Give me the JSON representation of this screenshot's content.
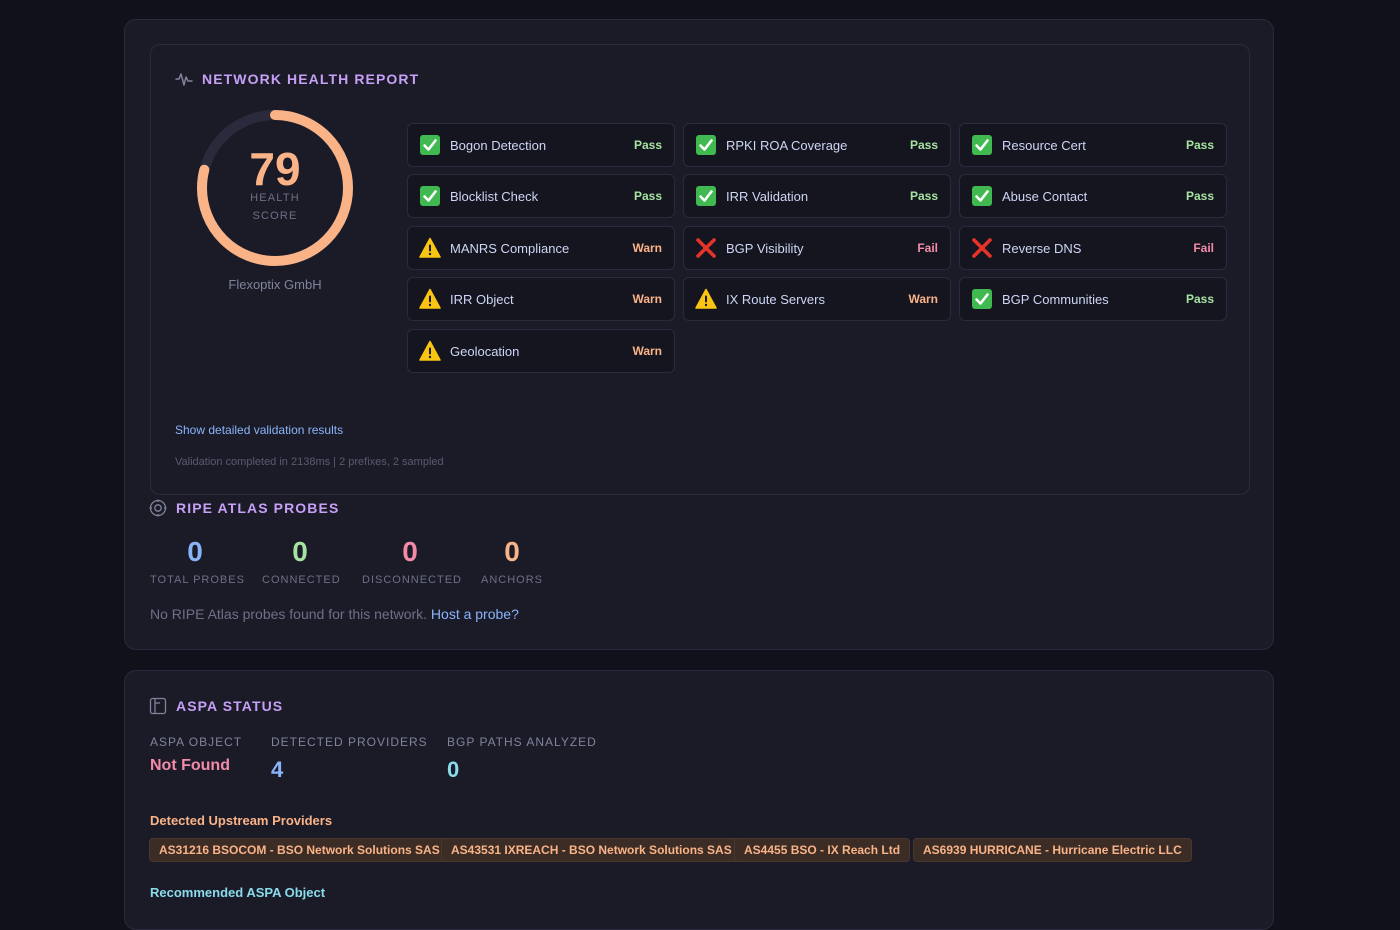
{
  "health": {
    "title": "NETWORK HEALTH REPORT",
    "score": "79",
    "score_fraction": 0.79,
    "score_label_1": "HEALTH",
    "score_label_2": "SCORE",
    "org": "Flexoptix GmbH",
    "checks": [
      {
        "label": "Bogon Detection",
        "status": "Pass",
        "kind": "pass"
      },
      {
        "label": "RPKI ROA Coverage",
        "status": "Pass",
        "kind": "pass"
      },
      {
        "label": "Resource Cert",
        "status": "Pass",
        "kind": "pass"
      },
      {
        "label": "Blocklist Check",
        "status": "Pass",
        "kind": "pass"
      },
      {
        "label": "IRR Validation",
        "status": "Pass",
        "kind": "pass"
      },
      {
        "label": "Abuse Contact",
        "status": "Pass",
        "kind": "pass"
      },
      {
        "label": "MANRS Compliance",
        "status": "Warn",
        "kind": "warn"
      },
      {
        "label": "BGP Visibility",
        "status": "Fail",
        "kind": "fail"
      },
      {
        "label": "Reverse DNS",
        "status": "Fail",
        "kind": "fail"
      },
      {
        "label": "IRR Object",
        "status": "Warn",
        "kind": "warn"
      },
      {
        "label": "IX Route Servers",
        "status": "Warn",
        "kind": "warn"
      },
      {
        "label": "BGP Communities",
        "status": "Pass",
        "kind": "pass"
      },
      {
        "label": "Geolocation",
        "status": "Warn",
        "kind": "warn"
      }
    ],
    "details_link": "Show detailed validation results",
    "meta": "Validation completed in 2138ms | 2 prefixes, 2 sampled"
  },
  "probes": {
    "title": "RIPE ATLAS PROBES",
    "stats": [
      {
        "value": "0",
        "label": "TOTAL PROBES",
        "color": "#89b4fa"
      },
      {
        "value": "0",
        "label": "CONNECTED",
        "color": "#a6e3a1"
      },
      {
        "value": "0",
        "label": "DISCONNECTED",
        "color": "#f38ba8"
      },
      {
        "value": "0",
        "label": "ANCHORS",
        "color": "#fab387"
      }
    ],
    "note": "No RIPE Atlas probes found for this network.",
    "note_link": "Host a probe?"
  },
  "aspa": {
    "title": "ASPA STATUS",
    "object_caption": "ASPA OBJECT",
    "object_value": "Not Found",
    "providers_caption": "DETECTED PROVIDERS",
    "providers_value": "4",
    "paths_caption": "BGP PATHS ANALYZED",
    "paths_value": "0",
    "upstream_heading": "Detected Upstream Providers",
    "providers": [
      "AS31216 BSOCOM - BSO Network Solutions SAS",
      "AS43531 IXREACH - BSO Network Solutions SAS",
      "AS4455 BSO - IX Reach Ltd",
      "AS6939 HURRICANE - Hurricane Electric LLC"
    ],
    "recommended_heading": "Recommended ASPA Object"
  },
  "colors": {
    "accent_purple": "#c6a0f6",
    "pass": "#a6e3a1",
    "warn": "#fab387",
    "fail": "#f38ba8",
    "link": "#89b4fa"
  }
}
